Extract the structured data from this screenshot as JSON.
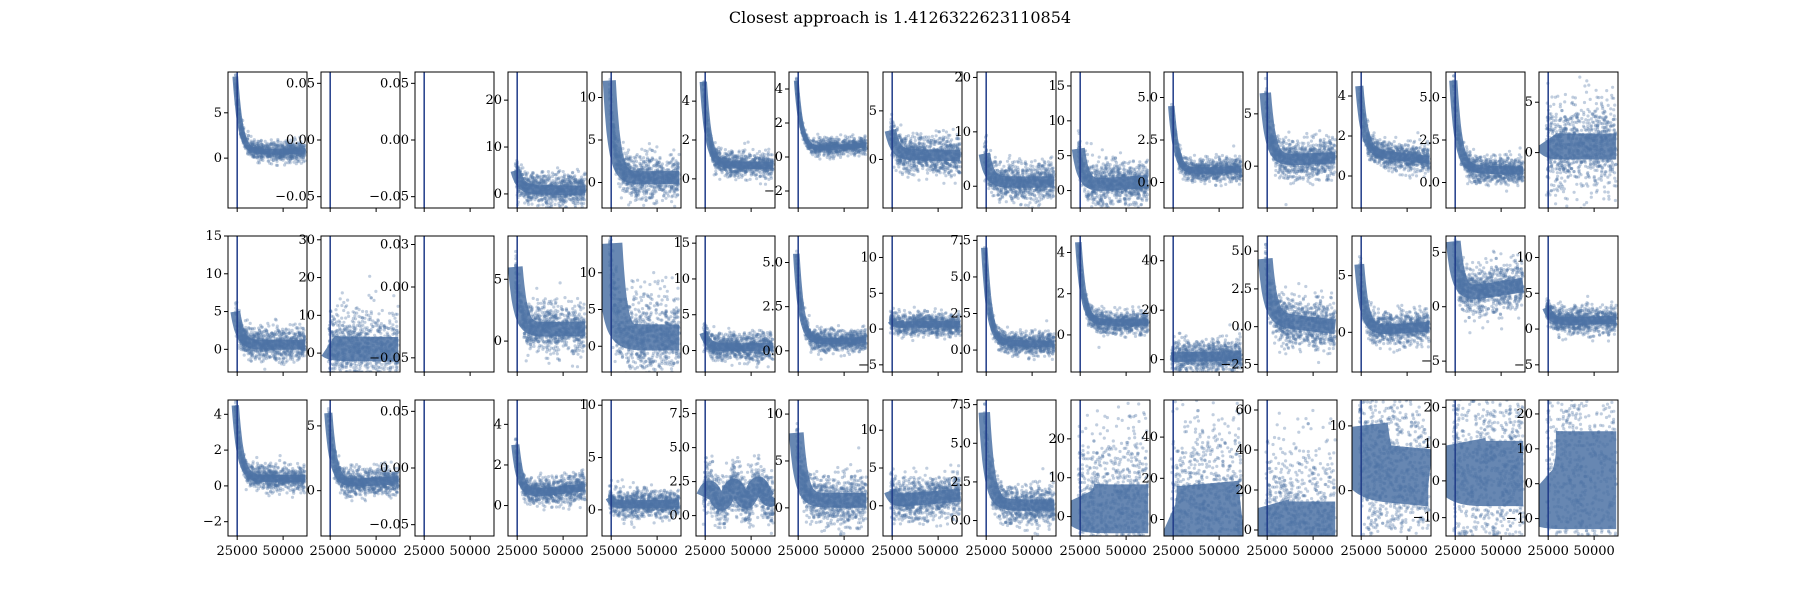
{
  "title": "Closest approach is 1.4126322623110854",
  "colors": {
    "series": "#4c72a4",
    "axis": "#000000",
    "marker": "#1f3c88"
  },
  "chart_data": {
    "type": "scatter",
    "layout": "3x15 grid of small-multiple panels",
    "title": "Closest approach is 1.4126322623110854",
    "xlim": [
      20000,
      63000
    ],
    "xticks": [
      25000,
      50000
    ],
    "xticklabels": [
      "25000",
      "50000"
    ],
    "marker_line_x": 25000,
    "panels": [
      {
        "row": 0,
        "col": 0,
        "ylim": [
          -5.5,
          9.5
        ],
        "yticks": [
          0,
          5
        ],
        "yticklabels": [
          "0",
          "5"
        ],
        "profile": {
          "start": 9,
          "mid": 0.6,
          "end": 0.8,
          "spread": 0.35,
          "kind": "decay"
        }
      },
      {
        "row": 0,
        "col": 1,
        "ylim": [
          -0.06,
          0.06
        ],
        "yticks": [
          -0.05,
          0,
          0.05
        ],
        "yticklabels": [
          "−0.05",
          "0.00",
          "0.05"
        ],
        "profile": {
          "kind": "empty"
        }
      },
      {
        "row": 0,
        "col": 2,
        "ylim": [
          -0.06,
          0.06
        ],
        "yticks": [
          -0.05,
          0,
          0.05
        ],
        "yticklabels": [
          "−0.05",
          "0.00",
          "0.05"
        ],
        "profile": {
          "kind": "empty"
        }
      },
      {
        "row": 0,
        "col": 3,
        "ylim": [
          -3,
          26
        ],
        "yticks": [
          0,
          10,
          20
        ],
        "yticklabels": [
          "0",
          "10",
          "20"
        ],
        "profile": {
          "start": 5,
          "mid": 1,
          "end": 0.7,
          "spread": 0.6,
          "kind": "decay"
        }
      },
      {
        "row": 0,
        "col": 4,
        "ylim": [
          -3,
          13
        ],
        "yticks": [
          0,
          5,
          10
        ],
        "yticklabels": [
          "0",
          "5",
          "10"
        ],
        "profile": {
          "start": 12,
          "mid": 0.5,
          "end": 0.6,
          "spread": 0.8,
          "kind": "decay"
        }
      },
      {
        "row": 0,
        "col": 5,
        "ylim": [
          -1.5,
          5.5
        ],
        "yticks": [
          0,
          2,
          4
        ],
        "yticklabels": [
          "0",
          "2",
          "4"
        ],
        "profile": {
          "start": 5,
          "mid": 0.7,
          "end": 0.7,
          "spread": 0.45,
          "kind": "decay"
        }
      },
      {
        "row": 0,
        "col": 6,
        "ylim": [
          -3,
          5
        ],
        "yticks": [
          -2,
          0,
          2,
          4
        ],
        "yticklabels": [
          "−2",
          "0",
          "2",
          "4"
        ],
        "profile": {
          "start": 4.5,
          "mid": 0.4,
          "end": 0.7,
          "spread": 0.3,
          "kind": "decay"
        }
      },
      {
        "row": 0,
        "col": 7,
        "ylim": [
          -5,
          9
        ],
        "yticks": [
          0,
          5
        ],
        "yticklabels": [
          "0",
          "5"
        ],
        "profile": {
          "start": 3,
          "mid": 0.5,
          "end": 0.4,
          "spread": 0.7,
          "kind": "decay"
        }
      },
      {
        "row": 0,
        "col": 8,
        "ylim": [
          -4,
          21
        ],
        "yticks": [
          0,
          10,
          20
        ],
        "yticklabels": [
          "0",
          "10",
          "20"
        ],
        "profile": {
          "start": 6,
          "mid": 0.7,
          "end": 0.8,
          "spread": 0.7,
          "kind": "decay"
        }
      },
      {
        "row": 0,
        "col": 9,
        "ylim": [
          -2.5,
          17
        ],
        "yticks": [
          0,
          5,
          10,
          15
        ],
        "yticklabels": [
          "0",
          "5",
          "10",
          "15"
        ],
        "profile": {
          "start": 6,
          "mid": 0.6,
          "end": 1.3,
          "spread": 0.8,
          "kind": "decay"
        }
      },
      {
        "row": 0,
        "col": 10,
        "ylim": [
          -1.5,
          6.5
        ],
        "yticks": [
          0,
          2.5,
          5
        ],
        "yticklabels": [
          "0.0",
          "2.5",
          "5.0"
        ],
        "profile": {
          "start": 4.5,
          "mid": 0.6,
          "end": 0.8,
          "spread": 0.4,
          "kind": "decay"
        }
      },
      {
        "row": 0,
        "col": 11,
        "ylim": [
          -4,
          9
        ],
        "yticks": [
          0,
          5
        ],
        "yticklabels": [
          "0",
          "5"
        ],
        "profile": {
          "start": 7,
          "mid": 0.5,
          "end": 0.8,
          "spread": 0.7,
          "kind": "decay"
        }
      },
      {
        "row": 0,
        "col": 12,
        "ylim": [
          -1.6,
          5.2
        ],
        "yticks": [
          0,
          2,
          4
        ],
        "yticklabels": [
          "0",
          "2",
          "4"
        ],
        "profile": {
          "start": 4.5,
          "mid": 1.2,
          "end": 0.8,
          "spread": 0.5,
          "kind": "decay"
        }
      },
      {
        "row": 0,
        "col": 13,
        "ylim": [
          -1.5,
          6.5
        ],
        "yticks": [
          0,
          2.5,
          5
        ],
        "yticklabels": [
          "0.0",
          "2.5",
          "5.0"
        ],
        "profile": {
          "start": 6,
          "mid": 0.8,
          "end": 0.7,
          "spread": 0.5,
          "kind": "decay"
        }
      },
      {
        "row": 0,
        "col": 14,
        "ylim": [
          -5.5,
          8
        ],
        "yticks": [
          0,
          5
        ],
        "yticklabels": [
          "0",
          "5"
        ],
        "profile": {
          "start": 1.2,
          "mid": 0.6,
          "end": 0.6,
          "spread": 1.6,
          "kind": "flat"
        }
      },
      {
        "row": 1,
        "col": 0,
        "ylim": [
          -3,
          15
        ],
        "yticks": [
          0,
          5,
          10,
          15
        ],
        "yticklabels": [
          "0",
          "5",
          "10",
          "15"
        ],
        "profile": {
          "start": 5,
          "mid": 0.6,
          "end": 0.6,
          "spread": 0.6,
          "kind": "decay"
        }
      },
      {
        "row": 1,
        "col": 1,
        "ylim": [
          -5,
          31
        ],
        "yticks": [
          0,
          10,
          20,
          30
        ],
        "yticklabels": [
          "0",
          "10",
          "20",
          "30"
        ],
        "profile": {
          "start": 2,
          "mid": 1.2,
          "end": 1,
          "spread": 1.5,
          "kind": "flat"
        }
      },
      {
        "row": 1,
        "col": 2,
        "ylim": [
          -0.06,
          0.036
        ],
        "yticks": [
          -0.05,
          0,
          0.03
        ],
        "yticklabels": [
          "−0.05",
          "0.00",
          "0.03"
        ],
        "profile": {
          "kind": "empty"
        }
      },
      {
        "row": 1,
        "col": 3,
        "ylim": [
          -2.5,
          8.5
        ],
        "yticks": [
          0,
          5
        ],
        "yticklabels": [
          "0",
          "5"
        ],
        "profile": {
          "start": 6,
          "mid": 0.9,
          "end": 1,
          "spread": 0.9,
          "kind": "decay"
        }
      },
      {
        "row": 1,
        "col": 4,
        "ylim": [
          -3.5,
          15
        ],
        "yticks": [
          0,
          5,
          10
        ],
        "yticklabels": [
          "0",
          "5",
          "10"
        ],
        "profile": {
          "start": 14,
          "mid": 1.2,
          "end": 1.2,
          "spread": 1.6,
          "kind": "decay"
        }
      },
      {
        "row": 1,
        "col": 5,
        "ylim": [
          -3,
          16
        ],
        "yticks": [
          0,
          5,
          10,
          15
        ],
        "yticklabels": [
          "0",
          "5",
          "10",
          "15"
        ],
        "profile": {
          "start": 2.5,
          "mid": 0.4,
          "end": 0.5,
          "spread": 0.5,
          "kind": "decay"
        }
      },
      {
        "row": 1,
        "col": 6,
        "ylim": [
          -1.2,
          6.5
        ],
        "yticks": [
          0,
          2.5,
          5
        ],
        "yticklabels": [
          "0.0",
          "2.5",
          "5.0"
        ],
        "profile": {
          "start": 5.5,
          "mid": 0.5,
          "end": 0.6,
          "spread": 0.4,
          "kind": "decay"
        }
      },
      {
        "row": 1,
        "col": 7,
        "ylim": [
          -6,
          13
        ],
        "yticks": [
          -5,
          0,
          5,
          10
        ],
        "yticklabels": [
          "−5",
          "0",
          "5",
          "10"
        ],
        "profile": {
          "start": 1.2,
          "mid": 0.6,
          "end": 0.7,
          "spread": 0.4,
          "kind": "flat"
        }
      },
      {
        "row": 1,
        "col": 8,
        "ylim": [
          -1.5,
          7.8
        ],
        "yticks": [
          0,
          2.5,
          5,
          7.5
        ],
        "yticklabels": [
          "0.0",
          "2.5",
          "5.0",
          "7.5"
        ],
        "profile": {
          "start": 7,
          "mid": 0.5,
          "end": 0.4,
          "spread": 0.4,
          "kind": "decay"
        }
      },
      {
        "row": 1,
        "col": 9,
        "ylim": [
          -1.8,
          4.8
        ],
        "yticks": [
          0,
          2,
          4
        ],
        "yticklabels": [
          "0",
          "2",
          "4"
        ],
        "profile": {
          "start": 4.5,
          "mid": 0.6,
          "end": 0.6,
          "spread": 0.4,
          "kind": "decay"
        }
      },
      {
        "row": 1,
        "col": 10,
        "ylim": [
          -5,
          50
        ],
        "yticks": [
          0,
          20,
          40
        ],
        "yticklabels": [
          "0",
          "20",
          "40"
        ],
        "profile": {
          "start": 1,
          "mid": 1,
          "end": 1.5,
          "spread": 0.6,
          "kind": "flat"
        }
      },
      {
        "row": 1,
        "col": 11,
        "ylim": [
          -3,
          6
        ],
        "yticks": [
          -2.5,
          0,
          2.5,
          5
        ],
        "yticklabels": [
          "−2.5",
          "0.0",
          "2.5",
          "5.0"
        ],
        "profile": {
          "start": 4.5,
          "mid": 0.5,
          "end": 0,
          "spread": 0.9,
          "kind": "decay"
        }
      },
      {
        "row": 1,
        "col": 12,
        "ylim": [
          -3.5,
          8.5
        ],
        "yticks": [
          0,
          5
        ],
        "yticklabels": [
          "0",
          "5"
        ],
        "profile": {
          "start": 6,
          "mid": 0.1,
          "end": 0.5,
          "spread": 0.6,
          "kind": "decay"
        }
      },
      {
        "row": 1,
        "col": 13,
        "ylim": [
          -6,
          6.5
        ],
        "yticks": [
          -5,
          0,
          5
        ],
        "yticklabels": [
          "−5",
          "0",
          "5"
        ],
        "profile": {
          "start": 6,
          "mid": 1,
          "end": 2,
          "spread": 0.9,
          "kind": "decay"
        }
      },
      {
        "row": 1,
        "col": 14,
        "ylim": [
          -6,
          13
        ],
        "yticks": [
          -5,
          0,
          5,
          10
        ],
        "yticklabels": [
          "−5",
          "0",
          "5",
          "10"
        ],
        "profile": {
          "start": 3,
          "mid": 1,
          "end": 1.3,
          "spread": 0.5,
          "kind": "decay"
        }
      },
      {
        "row": 2,
        "col": 0,
        "ylim": [
          -2.8,
          4.8
        ],
        "yticks": [
          -2,
          0,
          2,
          4
        ],
        "yticklabels": [
          "−2",
          "0",
          "2",
          "4"
        ],
        "profile": {
          "start": 4.5,
          "mid": 0.4,
          "end": 0.4,
          "spread": 0.45,
          "kind": "decay"
        }
      },
      {
        "row": 2,
        "col": 1,
        "ylim": [
          -3.5,
          7
        ],
        "yticks": [
          0,
          5
        ],
        "yticklabels": [
          "0",
          "5"
        ],
        "profile": {
          "start": 6,
          "mid": 0.5,
          "end": 0.8,
          "spread": 0.5,
          "kind": "decay"
        }
      },
      {
        "row": 2,
        "col": 2,
        "ylim": [
          -0.06,
          0.06
        ],
        "yticks": [
          -0.05,
          0,
          0.05
        ],
        "yticklabels": [
          "−0.05",
          "0.00",
          "0.05"
        ],
        "profile": {
          "kind": "empty"
        }
      },
      {
        "row": 2,
        "col": 3,
        "ylim": [
          -1.5,
          5.2
        ],
        "yticks": [
          0,
          2,
          4
        ],
        "yticklabels": [
          "0",
          "2",
          "4"
        ],
        "profile": {
          "start": 3,
          "mid": 0.5,
          "end": 0.9,
          "spread": 0.5,
          "kind": "decay"
        }
      },
      {
        "row": 2,
        "col": 4,
        "ylim": [
          -2.5,
          10.5
        ],
        "yticks": [
          0,
          5,
          10
        ],
        "yticklabels": [
          "0",
          "5",
          "10"
        ],
        "profile": {
          "start": 1.2,
          "mid": 0.5,
          "end": 0.6,
          "spread": 0.5,
          "kind": "flat"
        }
      },
      {
        "row": 2,
        "col": 5,
        "ylim": [
          -1.5,
          8.5
        ],
        "yticks": [
          0,
          2.5,
          5,
          7.5
        ],
        "yticklabels": [
          "0.0",
          "2.5",
          "5.0",
          "7.5"
        ],
        "profile": {
          "start": 2,
          "mid": 1.4,
          "end": 1.8,
          "spread": 0.9,
          "kind": "wavy"
        }
      },
      {
        "row": 2,
        "col": 6,
        "ylim": [
          -3,
          11.5
        ],
        "yticks": [
          0,
          5,
          10
        ],
        "yticklabels": [
          "0",
          "5",
          "10"
        ],
        "profile": {
          "start": 8,
          "mid": 0.8,
          "end": 0.8,
          "spread": 0.9,
          "kind": "decay"
        }
      },
      {
        "row": 2,
        "col": 7,
        "ylim": [
          -4,
          14
        ],
        "yticks": [
          0,
          5,
          10
        ],
        "yticklabels": [
          "0",
          "5",
          "10"
        ],
        "profile": {
          "start": 2,
          "mid": 0.6,
          "end": 1.4,
          "spread": 0.8,
          "kind": "flat"
        }
      },
      {
        "row": 2,
        "col": 8,
        "ylim": [
          -1,
          7.8
        ],
        "yticks": [
          0,
          2.5,
          5,
          7.5
        ],
        "yticklabels": [
          "0.0",
          "2.5",
          "5.0",
          "7.5"
        ],
        "profile": {
          "start": 7,
          "mid": 1,
          "end": 1,
          "spread": 0.7,
          "kind": "decay"
        }
      },
      {
        "row": 2,
        "col": 9,
        "ylim": [
          -5,
          30
        ],
        "yticks": [
          0,
          10,
          20
        ],
        "yticklabels": [
          "0",
          "10",
          "20"
        ],
        "profile": {
          "start": 5,
          "mid": 2,
          "end": 2,
          "spread": 3,
          "kind": "decay"
        }
      },
      {
        "row": 2,
        "col": 10,
        "ylim": [
          -8,
          58
        ],
        "yticks": [
          0,
          20,
          40
        ],
        "yticklabels": [
          "0",
          "20",
          "40"
        ],
        "profile": {
          "start": 3,
          "mid": 2,
          "end": 5,
          "spread": 3.5,
          "kind": "flat"
        }
      },
      {
        "row": 2,
        "col": 11,
        "ylim": [
          -3,
          65
        ],
        "yticks": [
          0,
          20,
          40,
          60
        ],
        "yticklabels": [
          "0",
          "20",
          "40",
          "60"
        ],
        "profile": {
          "start": 12,
          "mid": 2,
          "end": 2,
          "spread": 3,
          "kind": "decay"
        }
      },
      {
        "row": 2,
        "col": 12,
        "ylim": [
          -7,
          14
        ],
        "yticks": [
          0,
          10
        ],
        "yticklabels": [
          "0",
          "10"
        ],
        "profile": {
          "start": 10,
          "mid": 3,
          "end": 2,
          "spread": 3.5,
          "kind": "decay"
        }
      },
      {
        "row": 2,
        "col": 13,
        "ylim": [
          -15,
          22
        ],
        "yticks": [
          -10,
          0,
          10,
          20
        ],
        "yticklabels": [
          "−10",
          "0",
          "10",
          "20"
        ],
        "profile": {
          "start": 10,
          "mid": 2,
          "end": 2,
          "spread": 4,
          "kind": "decay"
        }
      },
      {
        "row": 2,
        "col": 14,
        "ylim": [
          -15,
          24
        ],
        "yticks": [
          -10,
          0,
          10,
          20
        ],
        "yticklabels": [
          "−10",
          "0",
          "10",
          "20"
        ],
        "profile": {
          "start": 2,
          "mid": 1,
          "end": 1,
          "spread": 6,
          "kind": "flat"
        }
      }
    ]
  }
}
